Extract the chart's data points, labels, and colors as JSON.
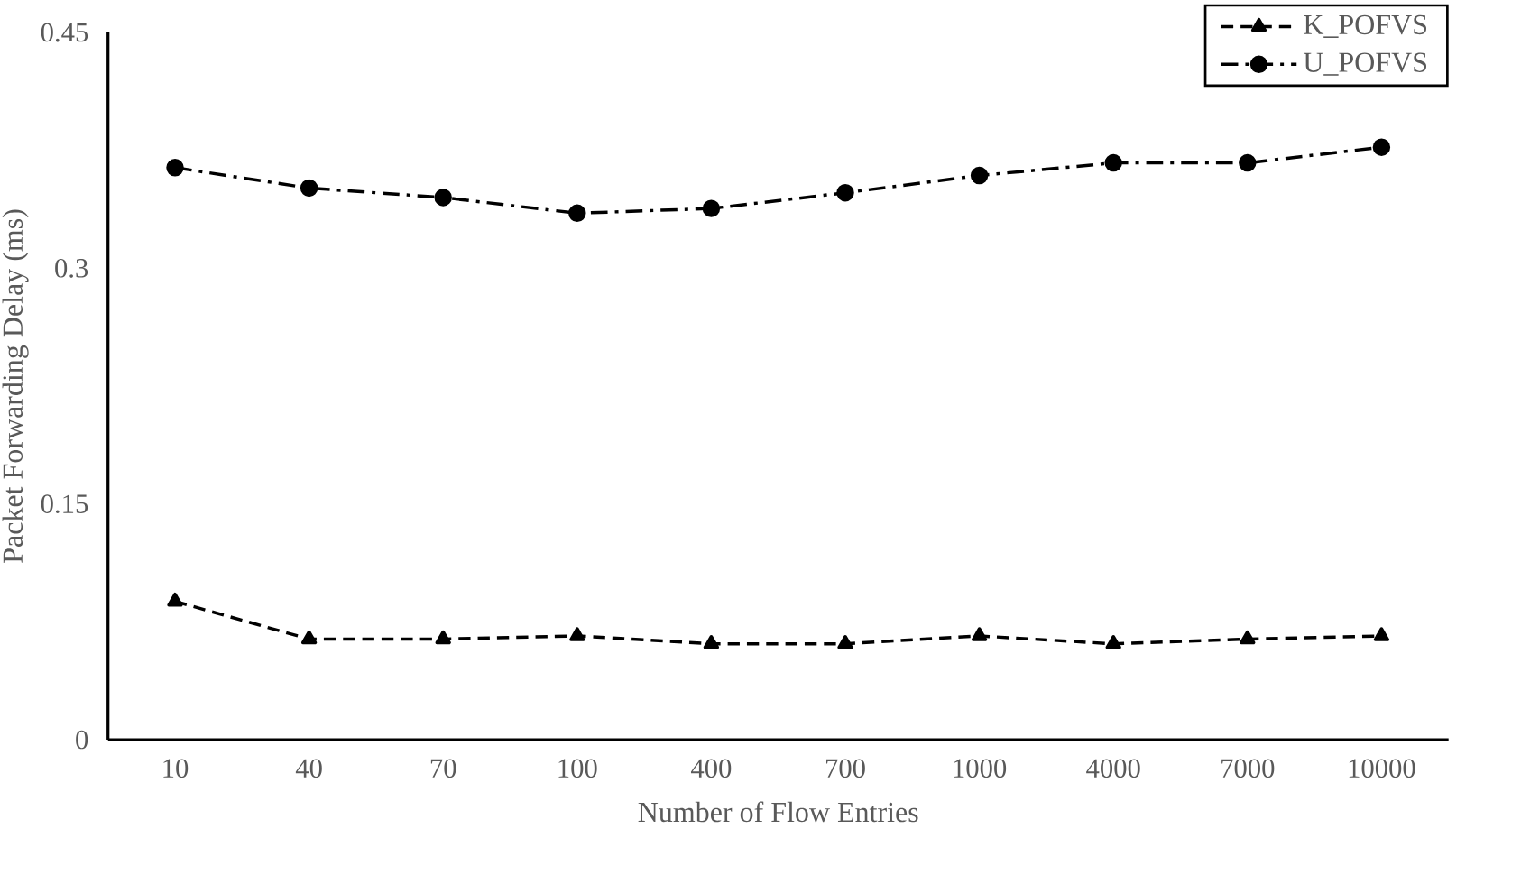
{
  "chart_data": {
    "type": "line",
    "xlabel": "Number of Flow Entries",
    "ylabel": "Packet Forwarding Delay (ms)",
    "categories": [
      "10",
      "40",
      "70",
      "100",
      "400",
      "700",
      "1000",
      "4000",
      "7000",
      "10000"
    ],
    "series": [
      {
        "name": "K_POFVS",
        "color": "#000000",
        "marker": "triangle",
        "line_style": "dashed",
        "values": [
          0.088,
          0.064,
          0.064,
          0.066,
          0.061,
          0.061,
          0.066,
          0.061,
          0.064,
          0.066
        ]
      },
      {
        "name": "U_POFVS",
        "color": "#000000",
        "marker": "circle",
        "line_style": "dashdot",
        "values": [
          0.364,
          0.351,
          0.345,
          0.335,
          0.338,
          0.348,
          0.359,
          0.367,
          0.367,
          0.377
        ]
      }
    ],
    "ylim": [
      0,
      0.45
    ],
    "yticks": [
      0,
      0.15,
      0.3,
      0.45
    ],
    "grid": false,
    "legend": "top right"
  }
}
